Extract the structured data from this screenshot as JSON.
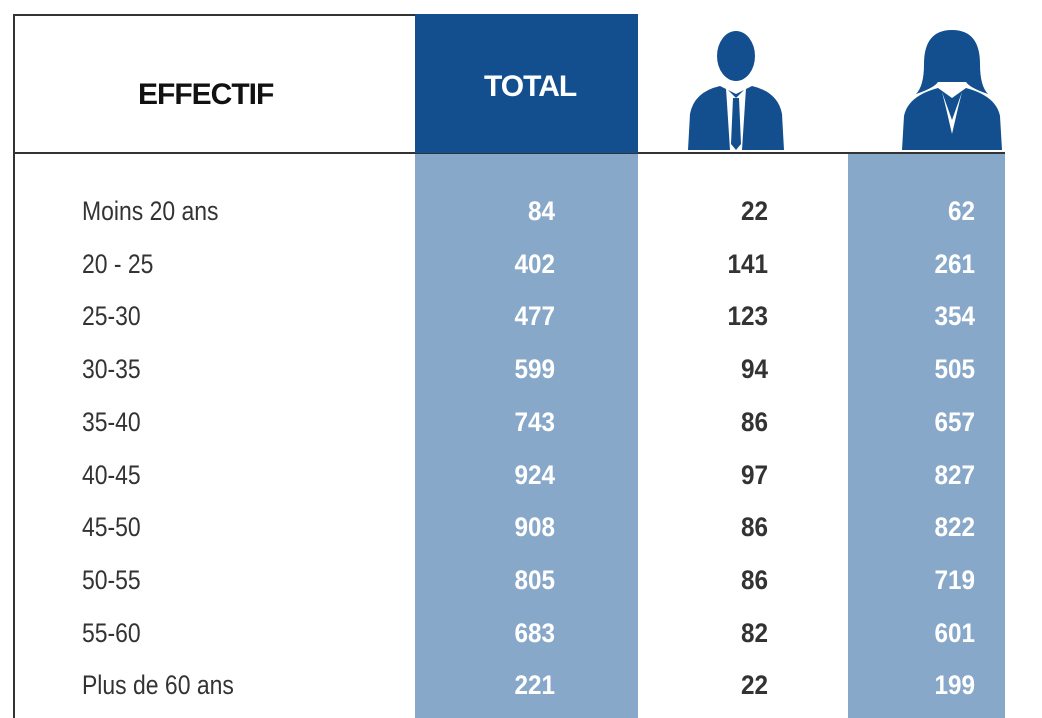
{
  "header": {
    "label": "EFFECTIF",
    "total": "TOTAL"
  },
  "rows": [
    [
      "Moins 20 ans",
      84,
      22,
      62
    ],
    [
      "20 - 25",
      402,
      141,
      261
    ],
    [
      "25-30",
      477,
      123,
      354
    ],
    [
      "30-35",
      599,
      94,
      505
    ],
    [
      "35-40",
      743,
      86,
      657
    ],
    [
      "40-45",
      924,
      97,
      827
    ],
    [
      "45-50",
      908,
      86,
      822
    ],
    [
      "50-55",
      805,
      86,
      719
    ],
    [
      "55-60",
      683,
      82,
      601
    ],
    [
      "Plus de 60 ans",
      221,
      22,
      199
    ]
  ]
}
